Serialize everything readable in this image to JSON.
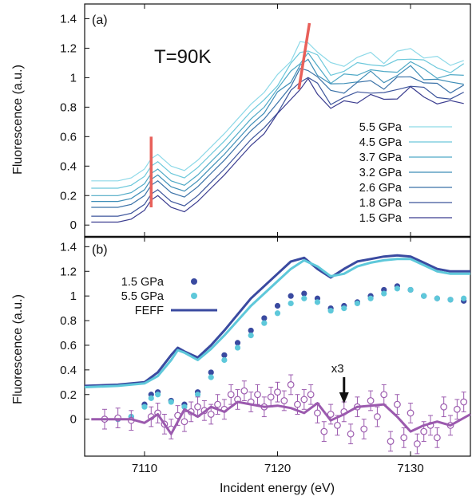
{
  "chart_data": [
    {
      "panel": "(a)",
      "type": "line",
      "annotation": "T=90K",
      "ylabel": "Fluorescence (a.u.)",
      "xlabel": "",
      "xlim": [
        7105.5,
        7134.5
      ],
      "ylim": [
        -0.08,
        1.5
      ],
      "yticks": [
        "0",
        "0.2",
        "0.4",
        "0.6",
        "0.8",
        "1",
        "1.2",
        "1.4"
      ],
      "legend_position": "bottom-right",
      "series": [
        {
          "name": "5.5 GPa",
          "color": "#8dd9e8"
        },
        {
          "name": "4.5 GPa",
          "color": "#6cc8db"
        },
        {
          "name": "3.7 GPa",
          "color": "#4fa9c6"
        },
        {
          "name": "3.2 GPa",
          "color": "#3f8eb7"
        },
        {
          "name": "2.6 GPa",
          "color": "#3b72a8"
        },
        {
          "name": "1.8 GPa",
          "color": "#3c549b"
        },
        {
          "name": "1.5 GPa",
          "color": "#3a3c8f"
        }
      ],
      "base_x": [
        7106,
        7108,
        7109,
        7110,
        7110.5,
        7111,
        7111.5,
        7112,
        7113,
        7114,
        7115,
        7116,
        7117,
        7118,
        7119,
        7120,
        7121,
        7121.7,
        7122.3,
        7123,
        7124,
        7125,
        7126,
        7127,
        7128,
        7129,
        7130,
        7131,
        7132,
        7133,
        7134
      ],
      "base_y": [
        0,
        0,
        0.02,
        0.08,
        0.15,
        0.18,
        0.14,
        0.1,
        0.07,
        0.14,
        0.23,
        0.32,
        0.42,
        0.52,
        0.6,
        0.72,
        0.83,
        0.92,
        0.95,
        0.88,
        0.78,
        0.8,
        0.83,
        0.86,
        0.82,
        0.86,
        0.9,
        0.85,
        0.82,
        0.8,
        0.82
      ],
      "offsets": [
        0.3,
        0.25,
        0.2,
        0.16,
        0.12,
        0.06,
        0.02
      ],
      "markers": [
        {
          "x": [
            7110.5,
            7110.5
          ],
          "y": [
            0.12,
            0.6
          ],
          "color": "#e8605a"
        },
        {
          "x": [
            7121.6,
            7122.4
          ],
          "y": [
            0.92,
            1.37
          ],
          "color": "#e8605a"
        }
      ]
    },
    {
      "panel": "(b)",
      "type": "scatter",
      "ylabel": "Fluorescence (a.u.)",
      "xlabel": "Incident energy (eV)",
      "xlim": [
        7105.5,
        7134.5
      ],
      "ylim": [
        -0.3,
        1.48
      ],
      "xticks": [
        "7110",
        "7120",
        "7130"
      ],
      "yticks": [
        "0",
        "0.2",
        "0.4",
        "0.6",
        "0.8",
        "1",
        "1.2",
        "1.4"
      ],
      "annotation": "x3",
      "arrow_x": 7125,
      "legend_position": "top-left",
      "series": [
        {
          "name": "1.5 GPa",
          "kind": "points",
          "color": "#3a4aa0",
          "x": [
            7107,
            7108,
            7109,
            7110,
            7110.5,
            7111,
            7112,
            7113,
            7114,
            7115,
            7116,
            7117,
            7118,
            7119,
            7120,
            7121,
            7122,
            7123,
            7124,
            7125,
            7126,
            7127,
            7128,
            7129,
            7130,
            7131,
            7132,
            7133,
            7134
          ],
          "y": [
            0,
            0,
            0.02,
            0.12,
            0.2,
            0.22,
            0.15,
            0.12,
            0.22,
            0.38,
            0.52,
            0.62,
            0.72,
            0.82,
            0.92,
            1.0,
            1.02,
            0.98,
            0.9,
            0.92,
            0.95,
            1.0,
            1.05,
            1.08,
            1.05,
            1.0,
            0.98,
            0.97,
            0.96
          ]
        },
        {
          "name": "5.5 GPa",
          "kind": "points",
          "color": "#5ec8da",
          "x": [
            7107,
            7108,
            7109,
            7110,
            7110.5,
            7111,
            7112,
            7113,
            7114,
            7115,
            7116,
            7117,
            7118,
            7119,
            7120,
            7121,
            7122,
            7123,
            7124,
            7125,
            7126,
            7127,
            7128,
            7129,
            7130,
            7131,
            7132,
            7133,
            7134
          ],
          "y": [
            0,
            0,
            0.02,
            0.1,
            0.17,
            0.2,
            0.14,
            0.1,
            0.2,
            0.34,
            0.48,
            0.58,
            0.68,
            0.78,
            0.86,
            0.94,
            0.98,
            0.95,
            0.88,
            0.9,
            0.94,
            0.98,
            1.02,
            1.06,
            1.05,
            1.0,
            0.98,
            0.97,
            0.98
          ]
        },
        {
          "name": "FEFF",
          "kind": "line",
          "color": "#3a4aa0",
          "x": [
            7105.5,
            7108,
            7110,
            7111,
            7112,
            7112.5,
            7113,
            7114,
            7115,
            7116,
            7117,
            7118,
            7119,
            7120,
            7121,
            7122,
            7123,
            7124,
            7125,
            7126,
            7127,
            7128,
            7129,
            7130,
            7131,
            7132,
            7133,
            7134.5
          ],
          "y": [
            0.27,
            0.28,
            0.3,
            0.38,
            0.52,
            0.58,
            0.55,
            0.5,
            0.6,
            0.72,
            0.85,
            0.98,
            1.08,
            1.18,
            1.28,
            1.31,
            1.22,
            1.15,
            1.22,
            1.28,
            1.3,
            1.32,
            1.33,
            1.32,
            1.27,
            1.22,
            1.2,
            1.2
          ]
        },
        {
          "name": "",
          "kind": "line",
          "color": "#5ec8da",
          "x": [
            7105.5,
            7108,
            7110,
            7111,
            7112,
            7112.5,
            7113,
            7114,
            7115,
            7116,
            7117,
            7118,
            7119,
            7120,
            7121,
            7122,
            7123,
            7124,
            7125,
            7126,
            7127,
            7128,
            7129,
            7130,
            7131,
            7132,
            7133,
            7134.5
          ],
          "y": [
            0.26,
            0.27,
            0.29,
            0.35,
            0.48,
            0.56,
            0.54,
            0.48,
            0.57,
            0.68,
            0.8,
            0.92,
            1.02,
            1.12,
            1.22,
            1.29,
            1.24,
            1.16,
            1.18,
            1.24,
            1.27,
            1.29,
            1.3,
            1.3,
            1.25,
            1.2,
            1.18,
            1.18
          ]
        },
        {
          "name": "",
          "kind": "errorbars",
          "color": "#9b5aae",
          "x": [
            7107,
            7108,
            7109,
            7110.5,
            7111,
            7111.5,
            7112,
            7112.5,
            7113,
            7113.5,
            7114,
            7114.5,
            7115,
            7115.5,
            7116,
            7116.5,
            7117,
            7117.5,
            7118,
            7118.5,
            7119,
            7119.5,
            7120,
            7120.5,
            7121,
            7121.5,
            7122,
            7122.5,
            7123,
            7123.5,
            7124,
            7124.5,
            7125,
            7125.5,
            7126,
            7126.5,
            7127,
            7127.5,
            7128,
            7128.5,
            7129,
            7129.5,
            7130,
            7130.5,
            7131,
            7131.5,
            7132,
            7132.5,
            7133,
            7133.5,
            7134
          ],
          "y": [
            0,
            0.01,
            -0.01,
            0.02,
            0.05,
            -0.04,
            -0.08,
            0.03,
            -0.02,
            0.06,
            0.1,
            0.07,
            0.04,
            0.12,
            0.08,
            0.2,
            0.16,
            0.23,
            0.14,
            0.2,
            0.1,
            0.18,
            0.22,
            0.15,
            0.28,
            0.12,
            0.16,
            0.2,
            0.05,
            -0.1,
            0.04,
            -0.05,
            0.06,
            -0.12,
            0.1,
            -0.08,
            0.15,
            0.02,
            0.2,
            -0.18,
            0.12,
            -0.15,
            0.05,
            -0.2,
            -0.1,
            -0.05,
            -0.15,
            0.1,
            -0.05,
            0.08,
            0.14
          ],
          "err": 0.08
        },
        {
          "name": "",
          "kind": "line",
          "color": "#9b5aae",
          "x": [
            7106,
            7109,
            7110,
            7111,
            7112,
            7113,
            7114,
            7115,
            7116,
            7117,
            7118,
            7119,
            7120,
            7121,
            7122,
            7123,
            7124,
            7125,
            7126,
            7127,
            7128,
            7129,
            7130,
            7131,
            7132,
            7133,
            7134.5
          ],
          "y": [
            0,
            0,
            -0.03,
            0.04,
            -0.12,
            0.08,
            0.02,
            0.1,
            0.06,
            0.14,
            0.12,
            0.1,
            0.11,
            0.09,
            0.05,
            0.13,
            -0.01,
            0.04,
            0.1,
            0.11,
            0.12,
            0.02,
            -0.1,
            -0.05,
            -0.02,
            -0.05,
            0.04
          ]
        }
      ]
    }
  ]
}
